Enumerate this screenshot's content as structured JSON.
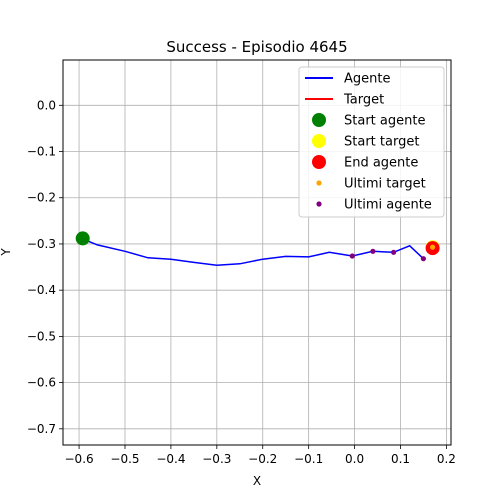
{
  "chart_data": {
    "type": "line",
    "title": "Success - Episodio 4645",
    "xlabel": "X",
    "ylabel": "Y",
    "xlim": [
      -0.635,
      0.21
    ],
    "ylim": [
      -0.735,
      0.098
    ],
    "x_ticks": [
      -0.6,
      -0.5,
      -0.4,
      -0.3,
      -0.2,
      -0.1,
      0.0,
      0.1,
      0.2
    ],
    "x_tick_labels": [
      "−0.6",
      "−0.5",
      "−0.4",
      "−0.3",
      "−0.2",
      "−0.1",
      "0.0",
      "0.1",
      "0.2"
    ],
    "y_ticks": [
      0.0,
      -0.1,
      -0.2,
      -0.3,
      -0.4,
      -0.5,
      -0.6,
      -0.7
    ],
    "y_tick_labels": [
      "0.0",
      "−0.1",
      "−0.2",
      "−0.3",
      "−0.4",
      "−0.5",
      "−0.6",
      "−0.7"
    ],
    "grid": true,
    "legend_position": "top-right",
    "series": [
      {
        "name": "Agente",
        "kind": "line",
        "color": "#0000ff",
        "x": [
          -0.595,
          -0.56,
          -0.5,
          -0.45,
          -0.4,
          -0.35,
          -0.3,
          -0.25,
          -0.2,
          -0.15,
          -0.1,
          -0.055,
          -0.005,
          0.04,
          0.085,
          0.12,
          0.15
        ],
        "y": [
          -0.288,
          -0.302,
          -0.316,
          -0.33,
          -0.333,
          -0.34,
          -0.346,
          -0.343,
          -0.333,
          -0.327,
          -0.328,
          -0.318,
          -0.326,
          -0.316,
          -0.318,
          -0.304,
          -0.332
        ]
      },
      {
        "name": "Target",
        "kind": "line",
        "color": "#ff0000",
        "x": [
          0.17,
          0.17
        ],
        "y": [
          -0.308,
          -0.308
        ]
      },
      {
        "name": "Start agente",
        "kind": "marker",
        "color": "#008000",
        "x": [
          -0.592
        ],
        "y": [
          -0.288
        ]
      },
      {
        "name": "Start target",
        "kind": "marker",
        "color": "#ffff00",
        "x": [
          0.17
        ],
        "y": [
          -0.307
        ]
      },
      {
        "name": "End agente",
        "kind": "marker",
        "color": "#ff0000",
        "x": [
          0.17
        ],
        "y": [
          -0.309
        ]
      },
      {
        "name": "Ultimi target",
        "kind": "dots",
        "color": "#ffa500",
        "x": [
          0.17
        ],
        "y": [
          -0.307
        ]
      },
      {
        "name": "Ultimi agente",
        "kind": "dots",
        "color": "#800080",
        "x": [
          -0.005,
          0.04,
          0.085,
          0.15
        ],
        "y": [
          -0.326,
          -0.316,
          -0.318,
          -0.332
        ]
      }
    ]
  }
}
